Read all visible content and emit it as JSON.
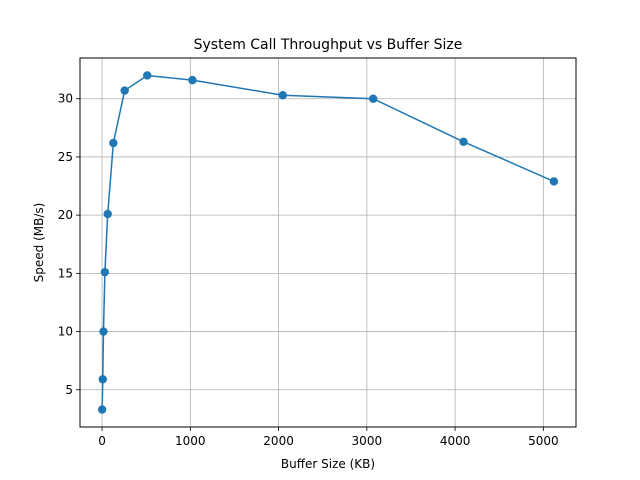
{
  "chart_data": {
    "type": "line",
    "title": "System Call Throughput vs Buffer Size",
    "xlabel": "Buffer Size (KB)",
    "ylabel": "Speed (MB/s)",
    "xlim": [
      -250,
      5370
    ],
    "ylim": [
      1.8,
      33.5
    ],
    "xticks": [
      0,
      1000,
      2000,
      3000,
      4000,
      5000
    ],
    "yticks": [
      5,
      10,
      15,
      20,
      25,
      30
    ],
    "grid": true,
    "marker": "circle",
    "color": "#1f77b4",
    "series": [
      {
        "x": [
          1,
          8,
          16,
          32,
          64,
          128,
          256,
          512,
          1024,
          2048,
          3072,
          4096,
          5120
        ],
        "y": [
          3.3,
          5.9,
          10.0,
          15.1,
          20.1,
          26.2,
          30.7,
          32.0,
          31.6,
          30.3,
          30.0,
          26.3,
          22.9
        ]
      }
    ]
  }
}
